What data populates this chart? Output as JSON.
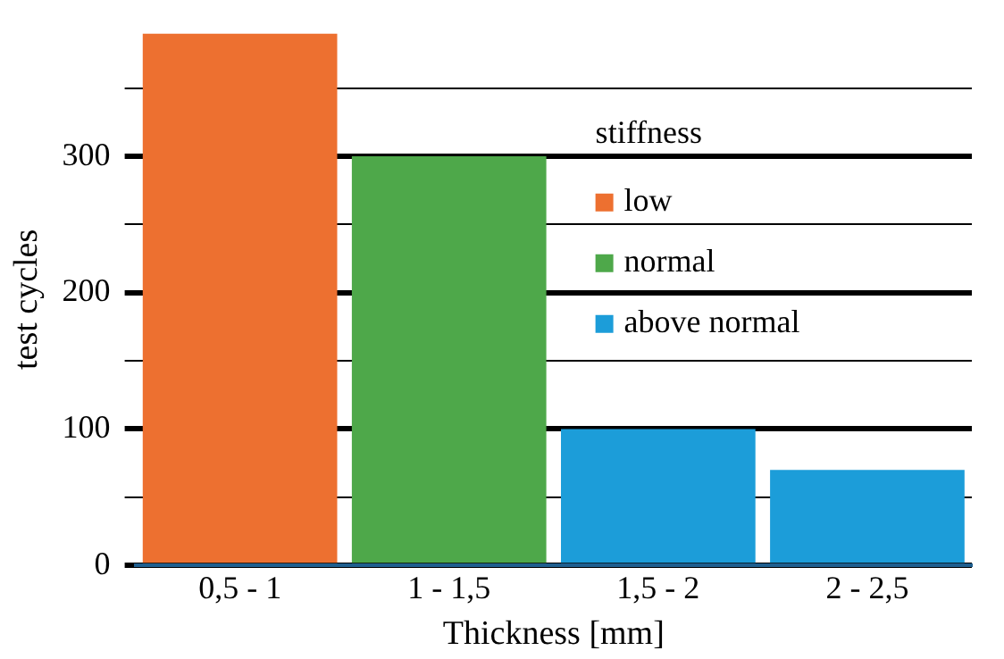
{
  "chart_data": {
    "type": "bar",
    "xlabel": "Thickness [mm]",
    "ylabel": "test cycles",
    "legend_title": "stiffness",
    "legend": "right",
    "categories": [
      "0,5 - 1",
      "1 - 1,5",
      "1,5 - 2",
      "2 - 2,5"
    ],
    "series": [
      {
        "name": "low",
        "color": "#ed7030",
        "values": [
          390,
          null,
          null,
          null
        ]
      },
      {
        "name": "normal",
        "color": "#4ea84a",
        "values": [
          null,
          300,
          null,
          null
        ]
      },
      {
        "name": "above normal",
        "color": "#1c9dd9",
        "values": [
          null,
          null,
          100,
          70
        ]
      }
    ],
    "ylim": [
      0,
      390
    ],
    "yticks": [
      0,
      {
        "value": 50,
        "label": null
      },
      100,
      {
        "value": 150,
        "label": null
      },
      200,
      {
        "value": 250,
        "label": null
      },
      300,
      {
        "value": 350,
        "label": null
      }
    ],
    "grid": "y"
  }
}
